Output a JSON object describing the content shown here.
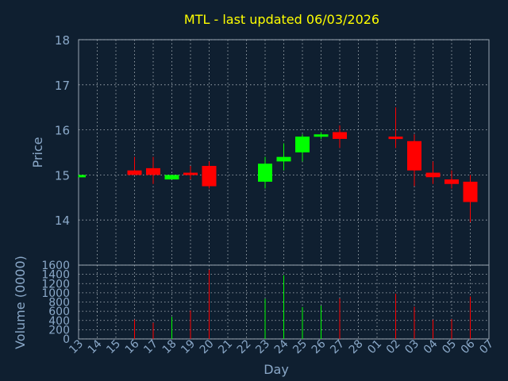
{
  "chart_data": {
    "type": "candlestick",
    "title": "MTL - last updated 06/03/2026",
    "xlabel": "Day",
    "price_panel": {
      "ylabel": "Price",
      "ylim": [
        13,
        18
      ],
      "yticks": [
        14,
        15,
        16,
        17,
        18
      ]
    },
    "volume_panel": {
      "ylabel": "Volume (0000)",
      "ylim": [
        0,
        1600
      ],
      "yticks": [
        0,
        200,
        400,
        600,
        800,
        1000,
        1200,
        1400,
        1600
      ]
    },
    "x_tick_labels": [
      "13",
      "14",
      "15",
      "16",
      "17",
      "18",
      "19",
      "20",
      "21",
      "22",
      "23",
      "24",
      "25",
      "26",
      "27",
      "28",
      "01",
      "02",
      "03",
      "04",
      "05",
      "06",
      "07"
    ],
    "grid": true,
    "colors": {
      "up": "#00ff00",
      "down": "#ff0000",
      "title": "#ffff00",
      "axis_text": "#8aa8c8",
      "grid": "#b0b8c0",
      "background": "#0f1f30"
    },
    "candles": [
      {
        "day": "13",
        "open": 14.95,
        "close": 15.0,
        "high": 15.0,
        "low": 14.95,
        "volume": 0
      },
      {
        "day": "16",
        "open": 15.1,
        "close": 15.0,
        "high": 15.4,
        "low": 15.0,
        "volume": 420
      },
      {
        "day": "17",
        "open": 15.15,
        "close": 15.0,
        "high": 15.4,
        "low": 14.8,
        "volume": 350
      },
      {
        "day": "18",
        "open": 14.9,
        "close": 15.0,
        "high": 15.0,
        "low": 14.9,
        "volume": 480
      },
      {
        "day": "19",
        "open": 15.05,
        "close": 15.0,
        "high": 15.2,
        "low": 14.9,
        "volume": 620
      },
      {
        "day": "20",
        "open": 15.2,
        "close": 14.75,
        "high": 15.3,
        "low": 14.7,
        "volume": 1500
      },
      {
        "day": "23",
        "open": 14.85,
        "close": 15.25,
        "high": 15.4,
        "low": 14.7,
        "volume": 870
      },
      {
        "day": "24",
        "open": 15.3,
        "close": 15.4,
        "high": 15.7,
        "low": 15.1,
        "volume": 1380
      },
      {
        "day": "25",
        "open": 15.5,
        "close": 15.85,
        "high": 15.9,
        "low": 15.3,
        "volume": 690
      },
      {
        "day": "26",
        "open": 15.85,
        "close": 15.9,
        "high": 15.95,
        "low": 15.8,
        "volume": 720
      },
      {
        "day": "27",
        "open": 15.95,
        "close": 15.8,
        "high": 16.1,
        "low": 15.6,
        "volume": 880
      },
      {
        "day": "02",
        "open": 15.85,
        "close": 15.8,
        "high": 16.5,
        "low": 15.6,
        "volume": 980
      },
      {
        "day": "03",
        "open": 15.75,
        "close": 15.1,
        "high": 15.9,
        "low": 14.75,
        "volume": 700
      },
      {
        "day": "04",
        "open": 15.05,
        "close": 14.95,
        "high": 15.3,
        "low": 14.8,
        "volume": 420
      },
      {
        "day": "05",
        "open": 14.9,
        "close": 14.8,
        "high": 15.1,
        "low": 14.7,
        "volume": 430
      },
      {
        "day": "06",
        "open": 14.85,
        "close": 14.4,
        "high": 15.0,
        "low": 13.95,
        "volume": 920
      }
    ]
  }
}
